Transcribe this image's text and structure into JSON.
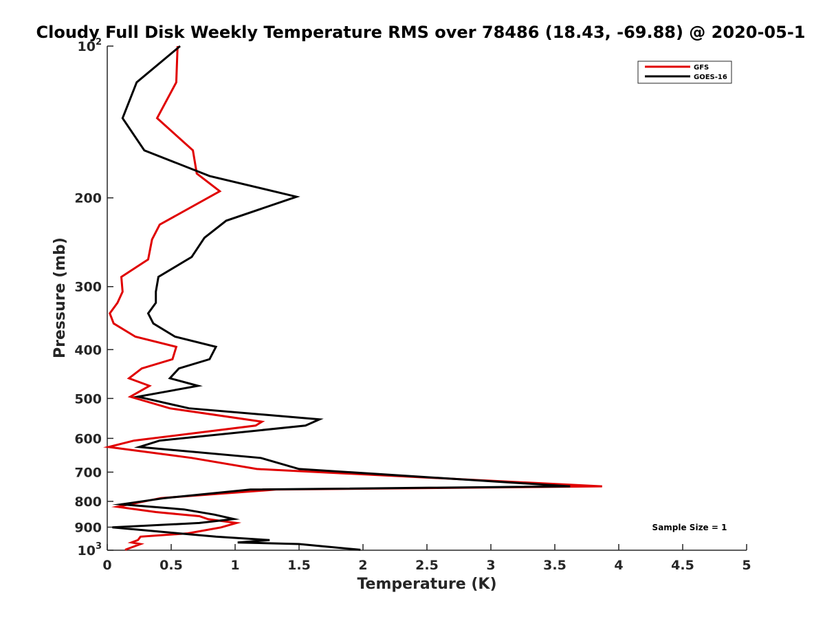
{
  "chart_data": {
    "type": "line",
    "title": "Cloudy Full Disk Weekly Temperature RMS over 78486 (18.43, -69.88) @ 2020-05-1",
    "xlabel": "Temperature (K)",
    "ylabel": "Pressure (mb)",
    "xlim": [
      0,
      5
    ],
    "ylim": [
      100,
      1000
    ],
    "yscale": "log",
    "y_reversed": true,
    "grid": false,
    "legend_position": "top-right",
    "x_ticks": [
      "0",
      "0.5",
      "1",
      "1.5",
      "2",
      "2.5",
      "3",
      "3.5",
      "4",
      "4.5",
      "5"
    ],
    "y_ticks": [
      {
        "value": 100,
        "label": "10",
        "sup": "2"
      },
      {
        "value": 200,
        "label": "200",
        "sup": ""
      },
      {
        "value": 300,
        "label": "300",
        "sup": ""
      },
      {
        "value": 400,
        "label": "400",
        "sup": ""
      },
      {
        "value": 500,
        "label": "500",
        "sup": ""
      },
      {
        "value": 600,
        "label": "600",
        "sup": ""
      },
      {
        "value": 700,
        "label": "700",
        "sup": ""
      },
      {
        "value": 800,
        "label": "800",
        "sup": ""
      },
      {
        "value": 900,
        "label": "900",
        "sup": ""
      },
      {
        "value": 1000,
        "label": "10",
        "sup": "3"
      }
    ],
    "series": [
      {
        "name": "GFS",
        "color": "#e00000",
        "points": [
          [
            0.55,
            100
          ],
          [
            0.54,
            118
          ],
          [
            0.39,
            139
          ],
          [
            0.67,
            161
          ],
          [
            0.7,
            179
          ],
          [
            0.88,
            194
          ],
          [
            0.41,
            226
          ],
          [
            0.35,
            242
          ],
          [
            0.32,
            265
          ],
          [
            0.11,
            287
          ],
          [
            0.12,
            307
          ],
          [
            0.08,
            323
          ],
          [
            0.02,
            339
          ],
          [
            0.05,
            355
          ],
          [
            0.22,
            377
          ],
          [
            0.54,
            395
          ],
          [
            0.51,
            418
          ],
          [
            0.27,
            436
          ],
          [
            0.17,
            456
          ],
          [
            0.33,
            472
          ],
          [
            0.18,
            496
          ],
          [
            0.49,
            523
          ],
          [
            1.21,
            556
          ],
          [
            1.16,
            566
          ],
          [
            0.21,
            606
          ],
          [
            0.01,
            624
          ],
          [
            0.66,
            656
          ],
          [
            1.17,
            690
          ],
          [
            3.87,
            747
          ],
          [
            1.32,
            758
          ],
          [
            0.42,
            788
          ],
          [
            0.08,
            820
          ],
          [
            0.38,
            840
          ],
          [
            0.72,
            856
          ],
          [
            0.79,
            868
          ],
          [
            1.01,
            883
          ],
          [
            0.89,
            901
          ],
          [
            0.63,
            926
          ],
          [
            0.26,
            940
          ],
          [
            0.24,
            955
          ],
          [
            0.19,
            965
          ],
          [
            0.26,
            972
          ],
          [
            0.14,
            998
          ]
        ]
      },
      {
        "name": "GOES-16",
        "color": "#000000",
        "points": [
          [
            0.57,
            100
          ],
          [
            0.23,
            118
          ],
          [
            0.12,
            139
          ],
          [
            0.29,
            161
          ],
          [
            0.8,
            181
          ],
          [
            1.48,
            199
          ],
          [
            0.93,
            222
          ],
          [
            0.76,
            240
          ],
          [
            0.66,
            262
          ],
          [
            0.4,
            287
          ],
          [
            0.38,
            307
          ],
          [
            0.38,
            323
          ],
          [
            0.32,
            339
          ],
          [
            0.36,
            355
          ],
          [
            0.53,
            377
          ],
          [
            0.85,
            395
          ],
          [
            0.8,
            418
          ],
          [
            0.56,
            436
          ],
          [
            0.49,
            456
          ],
          [
            0.71,
            472
          ],
          [
            0.24,
            496
          ],
          [
            0.64,
            523
          ],
          [
            1.66,
            550
          ],
          [
            1.55,
            566
          ],
          [
            0.41,
            606
          ],
          [
            0.25,
            624
          ],
          [
            1.2,
            656
          ],
          [
            1.5,
            690
          ],
          [
            3.62,
            747
          ],
          [
            1.12,
            758
          ],
          [
            0.45,
            788
          ],
          [
            0.11,
            811
          ],
          [
            0.6,
            830
          ],
          [
            0.84,
            850
          ],
          [
            0.99,
            867
          ],
          [
            0.72,
            883
          ],
          [
            0.04,
            901
          ],
          [
            0.56,
            926
          ],
          [
            0.85,
            940
          ],
          [
            1.27,
            955
          ],
          [
            1.02,
            965
          ],
          [
            1.5,
            972
          ],
          [
            1.98,
            998
          ]
        ]
      }
    ],
    "annotations": [
      {
        "text": "Sample Size = 1",
        "x": 4.8,
        "y": 900
      }
    ]
  }
}
